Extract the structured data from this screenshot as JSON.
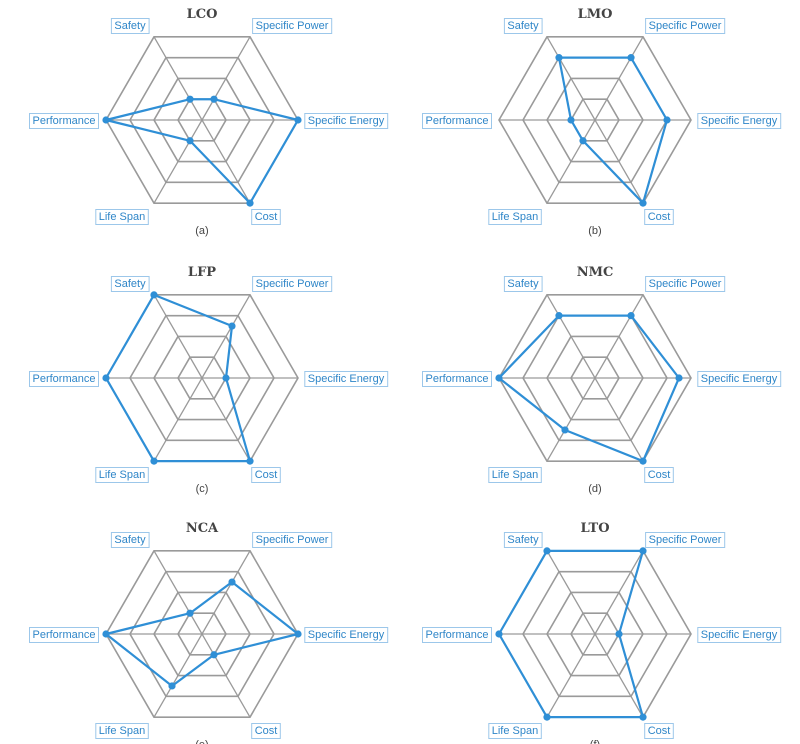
{
  "figure": {
    "series_color": "#2f8fd6",
    "grid_color": "#9a9a9a",
    "label_color": "#2f86c8"
  },
  "chart_data": [
    {
      "type": "radar",
      "title": "LCO",
      "caption": "(a)",
      "axes": [
        "Safety",
        "Specific Power",
        "Specific Energy",
        "Cost",
        "Life Span",
        "Performance"
      ],
      "levels": 4,
      "range": [
        0,
        4
      ],
      "values": [
        1,
        1,
        4,
        4,
        1,
        4
      ]
    },
    {
      "type": "radar",
      "title": "LMO",
      "caption": "(b)",
      "axes": [
        "Safety",
        "Specific Power",
        "Specific Energy",
        "Cost",
        "Life Span",
        "Performance"
      ],
      "levels": 4,
      "range": [
        0,
        4
      ],
      "values": [
        3,
        3,
        3,
        4,
        1,
        1
      ]
    },
    {
      "type": "radar",
      "title": "LFP",
      "caption": "(c)",
      "axes": [
        "Safety",
        "Specific Power",
        "Specific Energy",
        "Cost",
        "Life Span",
        "Performance"
      ],
      "levels": 4,
      "range": [
        0,
        4
      ],
      "values": [
        4,
        2.5,
        1,
        4,
        4,
        4
      ]
    },
    {
      "type": "radar",
      "title": "NMC",
      "caption": "(d)",
      "axes": [
        "Safety",
        "Specific Power",
        "Specific Energy",
        "Cost",
        "Life Span",
        "Performance"
      ],
      "levels": 4,
      "range": [
        0,
        4
      ],
      "values": [
        3,
        3,
        3.5,
        4,
        2.5,
        4
      ]
    },
    {
      "type": "radar",
      "title": "NCA",
      "caption": "(e)",
      "axes": [
        "Safety",
        "Specific Power",
        "Specific Energy",
        "Cost",
        "Life Span",
        "Performance"
      ],
      "levels": 4,
      "range": [
        0,
        4
      ],
      "values": [
        1,
        2.5,
        4,
        1,
        2.5,
        4
      ]
    },
    {
      "type": "radar",
      "title": "LTO",
      "caption": "(f)",
      "axes": [
        "Safety",
        "Specific Power",
        "Specific Energy",
        "Cost",
        "Life Span",
        "Performance"
      ],
      "levels": 4,
      "range": [
        0,
        4
      ],
      "values": [
        4,
        4,
        1,
        4,
        4,
        4
      ]
    }
  ]
}
